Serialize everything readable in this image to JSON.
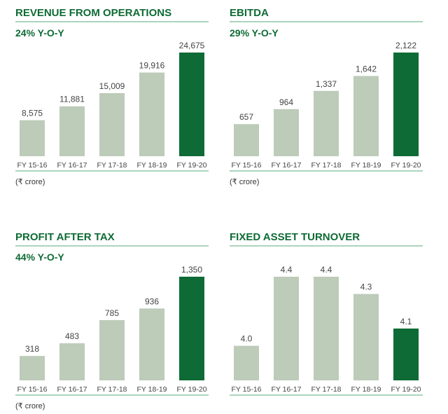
{
  "colors": {
    "highlight": "#0e6b35",
    "bar": "#bdcbb9",
    "rule": "#5aa878",
    "title": "#0e6b35"
  },
  "chart_data": [
    {
      "type": "bar",
      "title": "REVENUE FROM OPERATIONS",
      "subtitle": "24% Y-O-Y",
      "unit": "(₹ crore)",
      "categories": [
        "FY 15-16",
        "FY 16-17",
        "FY 17-18",
        "FY 18-19",
        "FY 19-20"
      ],
      "values": [
        8575,
        11881,
        15009,
        19916,
        24675
      ],
      "labels": [
        "8,575",
        "11,881",
        "15,009",
        "19,916",
        "24,675"
      ],
      "ylim": [
        0,
        24675
      ],
      "highlight_index": 4
    },
    {
      "type": "bar",
      "title": "EBITDA",
      "subtitle": "29% Y-O-Y",
      "unit": "(₹ crore)",
      "categories": [
        "FY 15-16",
        "FY 16-17",
        "FY 17-18",
        "FY 18-19",
        "FY 19-20"
      ],
      "values": [
        657,
        964,
        1337,
        1642,
        2122
      ],
      "labels": [
        "657",
        "964",
        "1,337",
        "1,642",
        "2,122"
      ],
      "ylim": [
        0,
        2122
      ],
      "highlight_index": 4
    },
    {
      "type": "bar",
      "title": "PROFIT AFTER TAX",
      "subtitle": "44% Y-O-Y",
      "unit": "(₹ crore)",
      "categories": [
        "FY 15-16",
        "FY 16-17",
        "FY 17-18",
        "FY 18-19",
        "FY 19-20"
      ],
      "values": [
        318,
        483,
        785,
        936,
        1350
      ],
      "labels": [
        "318",
        "483",
        "785",
        "936",
        "1,350"
      ],
      "ylim": [
        0,
        1350
      ],
      "highlight_index": 4
    },
    {
      "type": "bar",
      "title": "FIXED ASSET TURNOVER",
      "subtitle": "",
      "unit": "",
      "categories": [
        "FY 15-16",
        "FY 16-17",
        "FY 17-18",
        "FY 18-19",
        "FY 19-20"
      ],
      "values": [
        4.0,
        4.4,
        4.4,
        4.3,
        4.1
      ],
      "labels": [
        "4.0",
        "4.4",
        "4.4",
        "4.3",
        "4.1"
      ],
      "ylim": [
        3.8,
        4.4
      ],
      "highlight_index": 4
    }
  ]
}
